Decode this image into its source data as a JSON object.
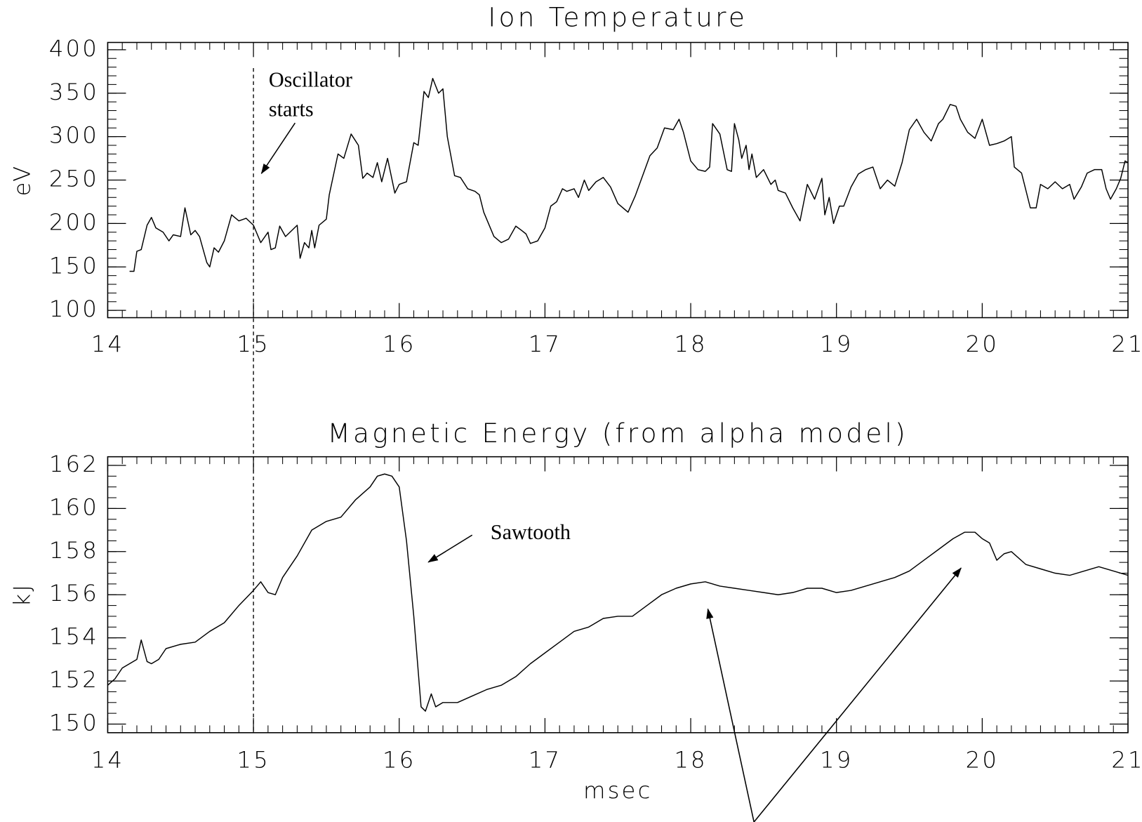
{
  "chart_data": [
    {
      "type": "line",
      "title": "Ion Temperature",
      "ylabel": "eV",
      "color": "#000000",
      "xlim": [
        14,
        21
      ],
      "xticks": [
        14,
        15,
        16,
        17,
        18,
        19,
        20,
        21
      ],
      "xminor": 10,
      "ylim": [
        91.6,
        408.4
      ],
      "yticks": [
        100,
        150,
        200,
        250,
        300,
        350,
        400
      ],
      "yminor": 5,
      "marker_x": 15,
      "annotations": [
        "Oscillator",
        "starts"
      ],
      "x": [
        14.15,
        14.18,
        14.2,
        14.23,
        14.27,
        14.3,
        14.33,
        14.38,
        14.42,
        14.45,
        14.5,
        14.53,
        14.57,
        14.6,
        14.63,
        14.68,
        14.7,
        14.73,
        14.76,
        14.8,
        14.85,
        14.9,
        14.95,
        15.0,
        15.05,
        15.1,
        15.12,
        15.15,
        15.18,
        15.22,
        15.3,
        15.32,
        15.35,
        15.38,
        15.4,
        15.42,
        15.45,
        15.5,
        15.52,
        15.58,
        15.62,
        15.67,
        15.72,
        15.75,
        15.78,
        15.82,
        15.85,
        15.88,
        15.92,
        15.97,
        16.0,
        16.05,
        16.1,
        16.13,
        16.17,
        16.2,
        16.23,
        16.27,
        16.3,
        16.33,
        16.38,
        16.42,
        16.47,
        16.52,
        16.55,
        16.58,
        16.65,
        16.7,
        16.75,
        16.8,
        16.84,
        16.87,
        16.9,
        16.95,
        17.0,
        17.04,
        17.08,
        17.12,
        17.15,
        17.2,
        17.23,
        17.27,
        17.3,
        17.35,
        17.4,
        17.45,
        17.5,
        17.57,
        17.62,
        17.67,
        17.72,
        17.77,
        17.82,
        17.88,
        17.92,
        17.95,
        18.0,
        18.05,
        18.1,
        18.13,
        18.15,
        18.2,
        18.25,
        18.28,
        18.3,
        18.33,
        18.35,
        18.38,
        18.4,
        18.42,
        18.45,
        18.5,
        18.55,
        18.58,
        18.6,
        18.65,
        18.7,
        18.75,
        18.8,
        18.85,
        18.9,
        18.92,
        18.95,
        18.98,
        19.02,
        19.05,
        19.1,
        19.15,
        19.2,
        19.25,
        19.3,
        19.35,
        19.4,
        19.45,
        19.5,
        19.55,
        19.6,
        19.65,
        19.7,
        19.73,
        19.78,
        19.82,
        19.85,
        19.9,
        19.95,
        20.0,
        20.05,
        20.1,
        20.15,
        20.2,
        20.22,
        20.27,
        20.33,
        20.37,
        20.4,
        20.45,
        20.5,
        20.55,
        20.6,
        20.63,
        20.68,
        20.72,
        20.77,
        20.82,
        20.85,
        20.88,
        20.92,
        20.95,
        20.98,
        21.0
      ],
      "values": [
        145,
        145,
        168,
        170,
        198,
        207,
        195,
        190,
        180,
        187,
        185,
        218,
        187,
        192,
        185,
        155,
        150,
        172,
        167,
        180,
        210,
        203,
        206,
        198,
        178,
        190,
        170,
        172,
        197,
        185,
        198,
        160,
        178,
        172,
        192,
        172,
        198,
        205,
        233,
        280,
        275,
        303,
        290,
        252,
        258,
        253,
        270,
        248,
        275,
        235,
        245,
        248,
        293,
        290,
        352,
        345,
        367,
        350,
        355,
        300,
        255,
        253,
        240,
        237,
        233,
        213,
        185,
        178,
        182,
        197,
        192,
        188,
        177,
        180,
        195,
        220,
        225,
        240,
        237,
        240,
        230,
        250,
        238,
        248,
        253,
        242,
        223,
        213,
        232,
        255,
        278,
        287,
        310,
        308,
        320,
        305,
        272,
        262,
        260,
        265,
        315,
        303,
        262,
        260,
        315,
        296,
        275,
        290,
        262,
        280,
        253,
        262,
        245,
        250,
        238,
        235,
        218,
        203,
        245,
        228,
        252,
        210,
        230,
        200,
        220,
        220,
        242,
        257,
        262,
        265,
        240,
        250,
        243,
        270,
        308,
        320,
        305,
        295,
        315,
        320,
        337,
        335,
        320,
        305,
        298,
        320,
        290,
        292,
        295,
        300,
        265,
        258,
        218,
        218,
        245,
        240,
        248,
        240,
        245,
        228,
        242,
        258,
        262,
        262,
        240,
        228,
        240,
        252,
        272,
        270
      ]
    },
    {
      "type": "line",
      "title": "Magnetic Energy (from alpha model)",
      "ylabel": "kJ",
      "xlabel": "msec",
      "color": "#000000",
      "xlim": [
        14,
        21
      ],
      "xticks": [
        14,
        15,
        16,
        17,
        18,
        19,
        20,
        21
      ],
      "xminor": 10,
      "ylim": [
        149.6,
        162.4
      ],
      "yticks": [
        150,
        152,
        154,
        156,
        158,
        160,
        162
      ],
      "yminor": 4,
      "annotations": [
        "Sawtooth"
      ],
      "x": [
        14.0,
        14.05,
        14.1,
        14.15,
        14.2,
        14.23,
        14.27,
        14.3,
        14.35,
        14.4,
        14.5,
        14.6,
        14.7,
        14.8,
        14.9,
        15.0,
        15.05,
        15.1,
        15.15,
        15.2,
        15.3,
        15.4,
        15.5,
        15.6,
        15.7,
        15.8,
        15.85,
        15.9,
        15.95,
        16.0,
        16.05,
        16.1,
        16.15,
        16.18,
        16.22,
        16.25,
        16.3,
        16.4,
        16.5,
        16.6,
        16.7,
        16.8,
        16.9,
        17.0,
        17.1,
        17.2,
        17.3,
        17.4,
        17.5,
        17.6,
        17.7,
        17.8,
        17.9,
        18.0,
        18.1,
        18.2,
        18.3,
        18.4,
        18.5,
        18.6,
        18.7,
        18.8,
        18.9,
        19.0,
        19.1,
        19.2,
        19.3,
        19.4,
        19.5,
        19.6,
        19.7,
        19.8,
        19.88,
        19.95,
        20.0,
        20.05,
        20.1,
        20.15,
        20.2,
        20.3,
        20.4,
        20.5,
        20.6,
        20.7,
        20.8,
        20.9,
        21.0
      ],
      "values": [
        151.8,
        152.1,
        152.6,
        152.8,
        153.0,
        153.9,
        152.9,
        152.8,
        153.0,
        153.5,
        153.7,
        153.8,
        154.3,
        154.7,
        155.5,
        156.2,
        156.6,
        156.1,
        156.0,
        156.8,
        157.8,
        159.0,
        159.4,
        159.6,
        160.4,
        161.0,
        161.5,
        161.6,
        161.5,
        161.0,
        158.5,
        155.0,
        150.8,
        150.6,
        151.4,
        150.8,
        151.0,
        151.0,
        151.3,
        151.6,
        151.8,
        152.2,
        152.8,
        153.3,
        153.8,
        154.3,
        154.5,
        154.9,
        155.0,
        155.0,
        155.5,
        156.0,
        156.3,
        156.5,
        156.6,
        156.4,
        156.3,
        156.2,
        156.1,
        156.0,
        156.1,
        156.3,
        156.3,
        156.1,
        156.2,
        156.4,
        156.6,
        156.8,
        157.1,
        157.6,
        158.1,
        158.6,
        158.9,
        158.9,
        158.6,
        158.4,
        157.6,
        157.9,
        158.0,
        157.4,
        157.2,
        157.0,
        156.9,
        157.1,
        157.3,
        157.1,
        156.9
      ]
    }
  ]
}
